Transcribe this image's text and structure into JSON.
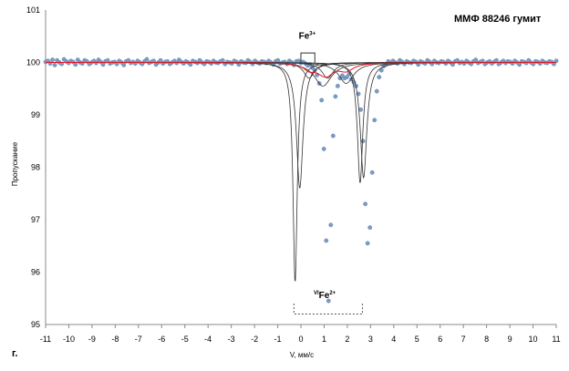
{
  "chart_data": {
    "type": "scatter",
    "title": "ММФ 88246 гумит",
    "xlabel": "V, мм/с",
    "ylabel": "Пропускание",
    "xlim": [
      -11,
      11
    ],
    "ylim": [
      95,
      101
    ],
    "xticks": [
      -11,
      -10,
      -9,
      -8,
      -7,
      -6,
      -5,
      -4,
      -3,
      -2,
      -1,
      0,
      1,
      2,
      3,
      4,
      5,
      6,
      7,
      8,
      9,
      10,
      11
    ],
    "yticks": [
      95,
      96,
      97,
      98,
      99,
      100,
      101
    ],
    "grid": false,
    "colors": {
      "data": "#7a9bc4",
      "envelope": "#e8141e",
      "components": "#333333"
    },
    "annotations": [
      {
        "text": "Fe",
        "sup": "3+",
        "x": 0.3,
        "y": 100.45
      },
      {
        "text": "Fe",
        "sup": "2+",
        "pre": "VI",
        "x": 1.1,
        "y": 95.4
      }
    ],
    "panel_label": "г.",
    "series": [
      {
        "kind": "measured-points",
        "y": [
          100.01,
          100.03,
          99.98,
          100.05,
          99.95,
          100.04,
          100.0,
          99.97,
          100.06,
          100.02,
          99.99,
          100.03,
          100.01,
          99.96,
          100.05,
          100.0,
          99.98,
          100.04,
          100.02,
          99.97,
          100.0,
          100.03,
          99.99,
          100.05,
          100.01,
          99.96,
          100.02,
          100.04,
          99.98,
          100.0,
          100.01,
          99.97,
          100.03,
          100.0,
          99.95,
          100.02,
          100.04,
          99.99,
          100.01,
          99.98,
          100.03,
          100.0,
          99.97,
          100.02,
          100.06,
          99.99,
          100.01,
          100.03,
          99.96,
          100.0,
          100.04,
          99.98,
          100.01,
          100.02,
          99.97,
          100.0,
          100.03,
          99.99,
          100.05,
          100.01,
          99.98,
          100.02,
          100.0,
          99.96,
          100.03,
          100.01,
          99.99,
          100.04,
          100.0,
          99.97,
          100.02,
          100.01,
          99.98,
          100.03,
          100.0,
          99.99,
          100.02,
          100.04,
          99.97,
          100.01,
          100.0,
          99.98,
          100.03,
          100.01,
          99.96,
          100.02,
          100.0,
          99.99,
          100.04,
          100.01,
          99.97,
          100.03,
          100.0,
          99.98,
          100.02,
          100.01,
          99.99,
          100.03,
          100.0,
          99.96,
          100.02,
          100.04,
          99.98,
          100.0,
          100.01,
          99.97,
          100.03,
          100.0,
          99.95,
          100.02,
          100.03,
          99.99,
          100.01,
          99.98,
          99.94,
          99.96,
          99.9,
          99.85,
          99.76,
          99.6,
          99.28,
          98.35,
          96.6,
          95.45,
          96.9,
          98.6,
          99.35,
          99.55,
          99.7,
          99.75,
          99.7,
          99.72,
          99.78,
          99.68,
          99.62,
          99.55,
          99.4,
          99.1,
          98.5,
          97.3,
          96.55,
          96.85,
          97.9,
          98.9,
          99.45,
          99.72,
          99.85,
          99.93,
          99.96,
          100.02,
          99.99,
          100.03,
          100.0,
          99.98,
          100.04,
          100.01,
          99.97,
          100.02,
          100.0,
          99.99,
          100.03,
          100.01,
          99.96,
          100.02,
          100.0,
          99.98,
          100.04,
          100.01,
          99.97,
          100.03,
          100.0,
          99.99,
          100.02,
          100.01,
          99.98,
          100.03,
          100.0,
          99.96,
          100.02,
          100.04,
          99.99,
          100.01,
          99.98,
          100.03,
          100.0,
          99.97,
          100.02,
          100.05,
          99.99,
          100.01,
          100.03,
          99.97,
          100.0,
          100.02,
          99.98,
          100.01,
          100.04,
          99.97,
          100.0,
          100.03,
          99.99,
          100.02,
          100.01,
          99.98,
          100.03,
          100.0,
          99.96,
          100.02,
          100.01,
          99.99,
          100.04,
          100.0,
          99.97,
          100.02,
          100.01,
          99.98,
          100.03,
          100.0,
          99.99,
          100.02,
          100.01,
          99.97,
          100.03
        ]
      },
      {
        "kind": "component",
        "name": "",
        "center": -0.25,
        "depth": 4.2,
        "hwhm": 0.11
      },
      {
        "kind": "component",
        "name": "",
        "center": 2.55,
        "depth": 2.3,
        "hwhm": 0.14
      },
      {
        "kind": "component",
        "name": "",
        "center": -0.05,
        "depth": 2.4,
        "hwhm": 0.17
      },
      {
        "kind": "component",
        "name": "",
        "center": 2.7,
        "depth": 2.2,
        "hwhm": 0.17
      },
      {
        "kind": "component",
        "name": "",
        "center": 0.35,
        "depth": 0.3,
        "hwhm": 0.28
      },
      {
        "kind": "component",
        "name": "",
        "center": 1.15,
        "depth": 0.3,
        "hwhm": 0.3
      },
      {
        "kind": "component",
        "name": "",
        "center": 0.95,
        "depth": 0.45,
        "hwhm": 0.45
      },
      {
        "kind": "component",
        "name": "",
        "center": 1.95,
        "depth": 0.4,
        "hwhm": 0.4
      }
    ]
  }
}
